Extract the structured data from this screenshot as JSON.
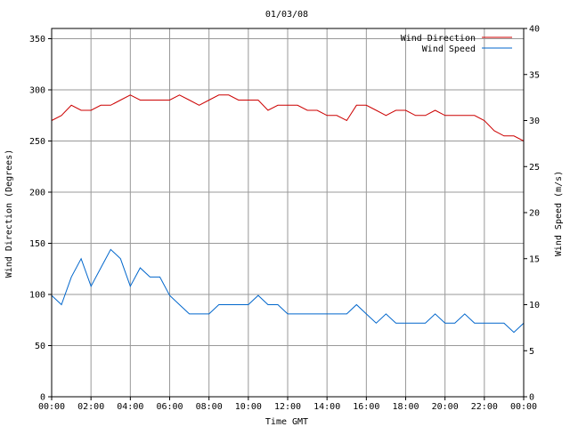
{
  "chart_data": {
    "type": "line",
    "title": "01/03/08",
    "xlabel": "Time GMT",
    "ylabel_left": "Wind Direction (Degrees)",
    "ylabel_right": "Wind Speed (m/s)",
    "x_ticks": [
      "00:00",
      "02:00",
      "04:00",
      "06:00",
      "08:00",
      "10:00",
      "12:00",
      "14:00",
      "16:00",
      "18:00",
      "20:00",
      "22:00",
      "00:00"
    ],
    "x_range_hours": [
      0,
      24
    ],
    "y_left": {
      "min": 0,
      "max": 360,
      "ticks": [
        0,
        50,
        100,
        150,
        200,
        250,
        300,
        350
      ]
    },
    "y_right": {
      "min": 0,
      "max": 40,
      "ticks": [
        0,
        5,
        10,
        15,
        20,
        25,
        30,
        35,
        40
      ]
    },
    "grid": true,
    "legend_position": "top-right",
    "series": [
      {
        "name": "Wind Direction",
        "axis": "left",
        "color": "#cc0000",
        "x_hours": [
          0,
          0.5,
          1,
          1.5,
          2,
          2.5,
          3,
          3.5,
          4,
          4.5,
          5,
          5.5,
          6,
          6.5,
          7,
          7.5,
          8,
          8.5,
          9,
          9.5,
          10,
          10.5,
          11,
          11.5,
          12,
          12.5,
          13,
          13.5,
          14,
          14.5,
          15,
          15.5,
          16,
          16.5,
          17,
          17.5,
          18,
          18.5,
          19,
          19.5,
          20,
          20.5,
          21,
          21.5,
          22,
          22.5,
          23,
          23.5,
          24
        ],
        "values": [
          270,
          275,
          285,
          280,
          280,
          285,
          285,
          290,
          295,
          290,
          290,
          290,
          290,
          295,
          290,
          285,
          290,
          295,
          295,
          290,
          290,
          290,
          280,
          285,
          285,
          285,
          280,
          280,
          275,
          275,
          270,
          285,
          285,
          280,
          275,
          280,
          280,
          275,
          275,
          280,
          275,
          275,
          275,
          275,
          270,
          260,
          255,
          255,
          250
        ]
      },
      {
        "name": "Wind Speed",
        "axis": "right",
        "color": "#0066cc",
        "x_hours": [
          0,
          0.5,
          1,
          1.5,
          2,
          2.5,
          3,
          3.5,
          4,
          4.5,
          5,
          5.5,
          6,
          6.5,
          7,
          7.5,
          8,
          8.5,
          9,
          9.5,
          10,
          10.5,
          11,
          11.5,
          12,
          12.5,
          13,
          13.5,
          14,
          14.5,
          15,
          15.5,
          16,
          16.5,
          17,
          17.5,
          18,
          18.5,
          19,
          19.5,
          20,
          20.5,
          21,
          21.5,
          22,
          22.5,
          23,
          23.5,
          24
        ],
        "values": [
          11,
          10,
          13,
          15,
          12,
          14,
          16,
          15,
          12,
          14,
          13,
          13,
          11,
          10,
          9,
          9,
          9,
          10,
          10,
          10,
          10,
          11,
          10,
          10,
          9,
          9,
          9,
          9,
          9,
          9,
          9,
          10,
          9,
          8,
          9,
          8,
          8,
          8,
          8,
          9,
          8,
          8,
          9,
          8,
          8,
          8,
          8,
          7,
          8
        ]
      }
    ]
  }
}
